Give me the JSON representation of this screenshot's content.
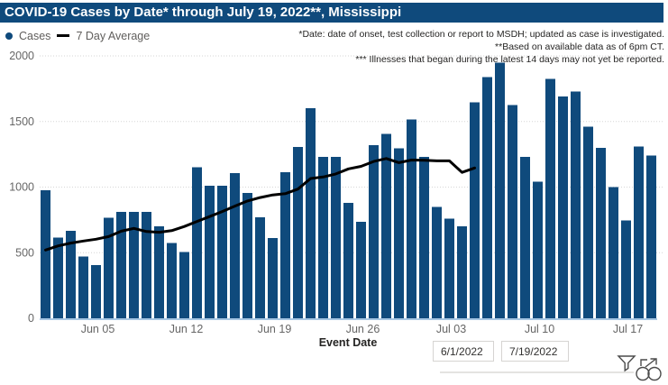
{
  "title": "COVID-19 Cases by Date* through July 19, 2022**, Mississippi",
  "legend": {
    "cases_label": "Cases",
    "avg_label": "7 Day Average"
  },
  "annotations": {
    "lines": [
      "*Date: date of onset, test collection or report to MSDH; updated as case is investigated.",
      "**Based on available data as of 6pm CT.",
      "*** Illnesses that began during the latest 14 days may not yet be reported."
    ]
  },
  "x_axis": {
    "title": "Event Date",
    "tick_labels": [
      "Jun 05",
      "Jun 12",
      "Jun 19",
      "Jun 26",
      "Jul 03",
      "Jul 10",
      "Jul 17"
    ],
    "tick_indices": [
      4,
      11,
      18,
      25,
      32,
      39,
      46
    ]
  },
  "y_axis": {
    "ticks": [
      0,
      500,
      1000,
      1500,
      2000
    ],
    "max": 2000
  },
  "date_filter": {
    "start": "6/1/2022",
    "end": "7/19/2022"
  },
  "colors": {
    "navy": "#0F4A7C",
    "title_bg": "#0F4A7C",
    "avg_line": "#000000",
    "axis_text": "#666666",
    "gridline": "#D6D6D6",
    "baseline": "#A6C6E2",
    "icon_gray": "#4A4A4A"
  },
  "chart_data": {
    "type": "bar",
    "title": "COVID-19 Cases by Date* through July 19, 2022**, Mississippi",
    "xlabel": "Event Date",
    "ylabel": "",
    "ylim": [
      0,
      2000
    ],
    "grid": "dotted-horizontal",
    "legend_position": "top-left",
    "x": [
      "Jun 01",
      "Jun 02",
      "Jun 03",
      "Jun 04",
      "Jun 05",
      "Jun 06",
      "Jun 07",
      "Jun 08",
      "Jun 09",
      "Jun 10",
      "Jun 11",
      "Jun 12",
      "Jun 13",
      "Jun 14",
      "Jun 15",
      "Jun 16",
      "Jun 17",
      "Jun 18",
      "Jun 19",
      "Jun 20",
      "Jun 21",
      "Jun 22",
      "Jun 23",
      "Jun 24",
      "Jun 25",
      "Jun 26",
      "Jun 27",
      "Jun 28",
      "Jun 29",
      "Jun 30",
      "Jul 01",
      "Jul 02",
      "Jul 03",
      "Jul 04",
      "Jul 05",
      "Jul 06",
      "Jul 07",
      "Jul 08",
      "Jul 09",
      "Jul 10",
      "Jul 11",
      "Jul 12",
      "Jul 13",
      "Jul 14",
      "Jul 15",
      "Jul 16",
      "Jul 17",
      "Jul 18",
      "Jul 19"
    ],
    "series": [
      {
        "name": "Cases",
        "type": "bar",
        "values": [
          975,
          615,
          665,
          470,
          405,
          765,
          810,
          810,
          810,
          700,
          575,
          505,
          1150,
          1010,
          1010,
          1105,
          955,
          770,
          610,
          1115,
          1305,
          1600,
          1230,
          1230,
          880,
          735,
          1320,
          1405,
          1295,
          1515,
          1230,
          850,
          760,
          700,
          1645,
          1840,
          1950,
          1625,
          1230,
          1040,
          1825,
          1690,
          1730,
          1460,
          1300,
          1000,
          745,
          1310,
          1240
        ]
      },
      {
        "name": "7 Day Average",
        "type": "line",
        "values": [
          520,
          552,
          573,
          589,
          603,
          623,
          664,
          685,
          661,
          656,
          668,
          700,
          738,
          775,
          814,
          855,
          894,
          920,
          940,
          950,
          985,
          1065,
          1077,
          1100,
          1139,
          1158,
          1195,
          1218,
          1186,
          1206,
          1205,
          1200,
          1200,
          1112,
          1146,
          null,
          null,
          null,
          null,
          null,
          null,
          null,
          null,
          null,
          null,
          null,
          null,
          null,
          null
        ]
      }
    ]
  }
}
